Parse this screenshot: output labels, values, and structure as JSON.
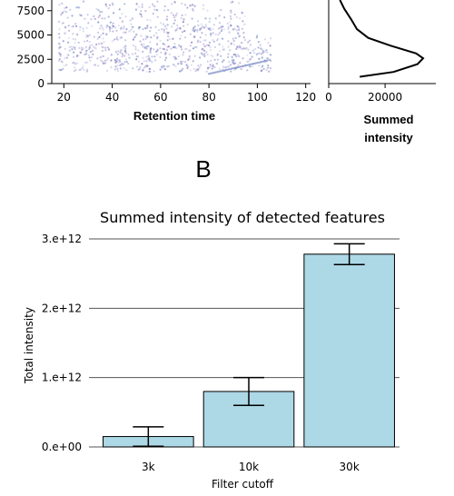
{
  "panel_label_B": "B",
  "colors": {
    "bar_fill": "#add8e6",
    "bar_stroke": "#000000",
    "grid": "#555555",
    "scatter_points": "#8a7fc0",
    "density_line": "#000000"
  },
  "chart_data": [
    {
      "type": "scatter",
      "title": "",
      "xlabel": "Retention time",
      "ylabel": "",
      "x_ticks": [
        "20",
        "40",
        "60",
        "80",
        "100",
        "120"
      ],
      "y_ticks": [
        "0",
        "2500",
        "5000",
        "7500"
      ],
      "xlim": [
        15,
        122
      ],
      "ylim": [
        0,
        8600
      ],
      "grid": false,
      "note_points": "dense cloud of detected features, mostly between retention time 20-105 and m/z values 1000-8000"
    },
    {
      "type": "line",
      "title": "",
      "xlabel": "Summed\nintensity",
      "xlabel_lines": [
        "Summed",
        "intensity"
      ],
      "x_ticks": [
        "0",
        "20000"
      ],
      "xlim": [
        0,
        38000
      ],
      "ylim": [
        0,
        8600
      ],
      "series": [
        {
          "points": [
            [
              11000,
              700
            ],
            [
              23000,
              1200
            ],
            [
              31500,
              2000
            ],
            [
              33500,
              2600
            ],
            [
              31000,
              3100
            ],
            [
              22000,
              3900
            ],
            [
              14000,
              4700
            ],
            [
              10000,
              5600
            ],
            [
              8000,
              6600
            ],
            [
              5500,
              7700
            ],
            [
              4000,
              8600
            ]
          ]
        }
      ]
    },
    {
      "type": "bar",
      "title": "Summed intensity of detected features",
      "xlabel": "Filter cutoff",
      "ylabel": "Total intensity",
      "categories": [
        "3k",
        "10k",
        "30k"
      ],
      "values": [
        150000000000.0,
        800000000000.0,
        2780000000000.0
      ],
      "errors": [
        140000000000.0,
        200000000000.0,
        150000000000.0
      ],
      "y_ticks": [
        "0.e+00",
        "1.e+12",
        "2.e+12",
        "3.e+12"
      ],
      "y_tick_values": [
        0,
        1000000000000.0,
        2000000000000.0,
        3000000000000.0
      ],
      "ylim": [
        0,
        3000000000000.0
      ],
      "grid": true
    }
  ]
}
